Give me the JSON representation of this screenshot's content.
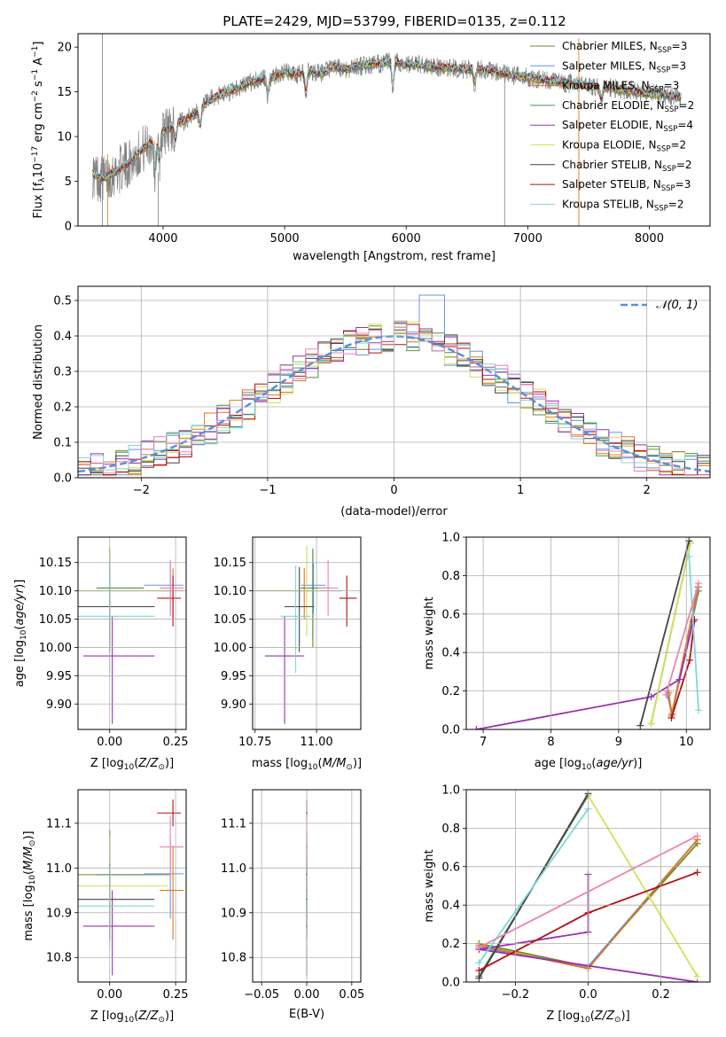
{
  "figure": {
    "title": "PLATE=2429, MJD=53799, FIBERID=0135, z=0.112"
  },
  "models": [
    {
      "label": "Chabrier MILES, N",
      "nssp": "=3",
      "color": "#6b8e23"
    },
    {
      "label": "Salpeter MILES, N",
      "nssp": "=3",
      "color": "#6495ed"
    },
    {
      "label": "Kroupa MILES, N",
      "nssp": "=3",
      "color": "#e0761a"
    },
    {
      "label": "Chabrier ELODIE, N",
      "nssp": "=2",
      "color": "#4d8c57"
    },
    {
      "label": "Salpeter ELODIE, N",
      "nssp": "=4",
      "color": "#9b30b0"
    },
    {
      "label": "Kroupa ELODIE, N",
      "nssp": "=2",
      "color": "#d4e157"
    },
    {
      "label": "Chabrier STELIB, N",
      "nssp": "=2",
      "color": "#444444"
    },
    {
      "label": "Salpeter STELIB, N",
      "nssp": "=3",
      "color": "#b01010"
    },
    {
      "label": "Kroupa STELIB, N",
      "nssp": "=2",
      "color": "#7fd8d8"
    }
  ],
  "extra_colors": {
    "pink": "#ee82b4",
    "lime": "#b5e655",
    "data": "#808080",
    "gaussian": "#5b8fd9"
  },
  "nssp_sub": "SSP",
  "chart_data": [
    {
      "id": "spectrum",
      "type": "line",
      "title": "PLATE=2429, MJD=53799, FIBERID=0135, z=0.112",
      "xlabel": "wavelength [Angstrom, rest frame]",
      "ylabel": "Flux [f",
      "ylabel_parts": [
        "Flux [f",
        "λ",
        "10",
        "−17",
        " erg cm",
        "−2",
        " s",
        "−1",
        " A",
        "−1",
        "]"
      ],
      "xlim": [
        3300,
        8500
      ],
      "ylim": [
        0,
        21.5
      ],
      "xticks": [
        4000,
        5000,
        6000,
        7000,
        8000
      ],
      "yticks": [
        0,
        5,
        10,
        15,
        20
      ],
      "grid": false,
      "legend": "top-right",
      "x": [
        3420,
        3500,
        3600,
        3700,
        3800,
        3900,
        4000,
        4100,
        4200,
        4300,
        4400,
        4500,
        4600,
        4700,
        4800,
        4900,
        5000,
        5100,
        5200,
        5300,
        5400,
        5500,
        5600,
        5700,
        5800,
        5900,
        6000,
        6100,
        6200,
        6300,
        6400,
        6500,
        6600,
        6700,
        6800,
        6900,
        7000,
        7100,
        7200,
        7300,
        7400,
        7500,
        7600,
        7700,
        7800,
        7900,
        8000,
        8100,
        8200,
        8260
      ],
      "y": [
        5.8,
        5.2,
        6.0,
        6.8,
        8.2,
        9.3,
        10.5,
        11.3,
        12.0,
        13.0,
        14.2,
        14.8,
        15.3,
        16.0,
        16.4,
        16.6,
        17.2,
        16.9,
        17.4,
        17.0,
        17.8,
        17.5,
        17.9,
        18.0,
        18.2,
        18.4,
        18.1,
        18.0,
        17.8,
        17.7,
        17.6,
        17.5,
        17.6,
        17.3,
        17.0,
        16.8,
        16.6,
        16.4,
        16.2,
        16.0,
        15.8,
        15.7,
        15.5,
        15.4,
        15.2,
        15.0,
        14.8,
        14.7,
        14.5,
        14.4
      ]
    },
    {
      "id": "residuals",
      "type": "bar",
      "xlabel": "(data-model)/error",
      "ylabel": "Normed distribution",
      "xlim": [
        -2.5,
        2.5
      ],
      "ylim": [
        0,
        0.54
      ],
      "xticks": [
        -2,
        -1,
        0,
        1,
        2
      ],
      "yticks": [
        0.0,
        0.1,
        0.2,
        0.3,
        0.4,
        0.5
      ],
      "grid": true,
      "legend": "top-right",
      "series": [
        {
          "name": "𝒩(0, 1)",
          "type": "line",
          "mean": 0,
          "sigma": 1
        }
      ]
    },
    {
      "id": "age_vs_Z",
      "type": "scatter",
      "xlabel": "Z [log",
      "ylabel": "age  [log",
      "xlim": [
        -0.12,
        0.29
      ],
      "ylim": [
        9.855,
        10.195
      ],
      "xticks": [
        0.0,
        0.25
      ],
      "yticks": [
        9.9,
        9.95,
        10.0,
        10.05,
        10.1,
        10.15
      ],
      "grid": true
    },
    {
      "id": "age_vs_mass",
      "type": "scatter",
      "xlabel": "mass [log",
      "ylabel": "",
      "xlim": [
        10.74,
        11.18
      ],
      "ylim": [
        9.855,
        10.195
      ],
      "xticks": [
        10.75,
        11.0
      ],
      "yticks": [
        9.9,
        9.95,
        10.0,
        10.05,
        10.1,
        10.15
      ],
      "grid": true
    },
    {
      "id": "weight_vs_age",
      "type": "line",
      "xlabel": "age  [log",
      "ylabel": "mass weight",
      "xlim": [
        6.75,
        10.35
      ],
      "ylim": [
        0,
        1.0
      ],
      "xticks": [
        7,
        8,
        9,
        10
      ],
      "yticks": [
        0.0,
        0.2,
        0.4,
        0.6,
        0.8,
        1.0
      ],
      "grid": true
    },
    {
      "id": "mass_vs_Z",
      "type": "scatter",
      "xlabel": "Z [log",
      "ylabel": "mass [log",
      "xlim": [
        -0.12,
        0.29
      ],
      "ylim": [
        10.745,
        11.175
      ],
      "xticks": [
        0.0,
        0.25
      ],
      "yticks": [
        10.8,
        10.9,
        11.0,
        11.1
      ],
      "grid": true
    },
    {
      "id": "mass_vs_ebv",
      "type": "scatter",
      "xlabel": "E(B-V)",
      "ylabel": "",
      "xlim": [
        -0.06,
        0.06
      ],
      "ylim": [
        10.745,
        11.175
      ],
      "xticks": [
        -0.05,
        0.0,
        0.05
      ],
      "yticks": [
        10.8,
        10.9,
        11.0,
        11.1
      ],
      "grid": true
    },
    {
      "id": "weight_vs_Z",
      "type": "line",
      "xlabel": "Z [log",
      "ylabel": "mass weight",
      "xlim": [
        -0.335,
        0.335
      ],
      "ylim": [
        0,
        1.0
      ],
      "xticks": [
        -0.2,
        0.0,
        0.2
      ],
      "yticks": [
        0.0,
        0.2,
        0.4,
        0.6,
        0.8,
        1.0
      ],
      "grid": true
    }
  ],
  "fits": [
    {
      "Z": 0.0,
      "Zlo": 0.12,
      "Zhi": 0.23,
      "age": 10.1,
      "ageLo": 0.1,
      "ageHi": 0.07,
      "mass": 10.985,
      "massLo": 0.12,
      "massHi": 0.1,
      "massL": 0.25,
      "massR": 0.12
    },
    {
      "Z": 0.23,
      "Zlo": 0.1,
      "Zhi": 0.05,
      "age": 10.11,
      "ageLo": 0.05,
      "ageHi": 0.04,
      "mass": 10.987,
      "massLo": 0.1,
      "massHi": 0.08,
      "massL": 0.05,
      "massR": 0.05
    },
    {
      "Z": 0.24,
      "Zlo": 0.05,
      "Zhi": 0.04,
      "age": 10.1,
      "ageLo": 0.05,
      "ageHi": 0.04,
      "mass": 10.95,
      "massLo": 0.11,
      "massHi": 0.1,
      "massL": 0.05,
      "massR": 0.04
    },
    {
      "Z": 0.0,
      "Zlo": 0.05,
      "Zhi": 0.13,
      "age": 10.105,
      "ageLo": 0.09,
      "ageHi": 0.07,
      "mass": 10.985,
      "massLo": 0.12,
      "massHi": 0.1,
      "massL": 0.05,
      "massR": 0.07
    },
    {
      "Z": 0.01,
      "Zlo": 0.11,
      "Zhi": 0.16,
      "age": 9.985,
      "ageLo": 0.12,
      "ageHi": 0.07,
      "mass": 10.87,
      "massLo": 0.11,
      "massHi": 0.08,
      "massL": 0.08,
      "massR": 0.08
    },
    {
      "Z": 0.0,
      "Zlo": 0.13,
      "Zhi": 0.22,
      "age": 10.1,
      "ageLo": 0.08,
      "ageHi": 0.08,
      "mass": 10.96,
      "massLo": 0.12,
      "massHi": 0.11,
      "massL": 0.06,
      "massR": 0.06
    },
    {
      "Z": 0.0,
      "Zlo": 0.13,
      "Zhi": 0.17,
      "age": 10.072,
      "ageLo": 0.08,
      "ageHi": 0.07,
      "mass": 10.93,
      "massLo": 0.09,
      "massHi": 0.08,
      "massL": 0.06,
      "massR": 0.06
    },
    {
      "Z": 0.24,
      "Zlo": 0.06,
      "Zhi": 0.03,
      "age": 10.087,
      "ageLo": 0.05,
      "ageHi": 0.04,
      "mass": 11.123,
      "massLo": 0.03,
      "massHi": 0.03,
      "massL": 0.03,
      "massR": 0.04
    },
    {
      "Z": 0.0,
      "Zlo": 0.13,
      "Zhi": 0.17,
      "age": 10.055,
      "ageLo": 0.1,
      "ageHi": 0.09,
      "mass": 10.915,
      "massLo": 0.09,
      "massHi": 0.09,
      "massL": 0.06,
      "massR": 0.06
    },
    {
      "Z": 0.23,
      "Zlo": 0.04,
      "Zhi": 0.05,
      "age": 10.105,
      "ageLo": 0.05,
      "ageHi": 0.05,
      "mass": 11.047,
      "massLo": 0.07,
      "massHi": 0.07,
      "massL": 0.04,
      "massR": 0.04
    }
  ],
  "weights": [
    {
      "age": [
        9.72,
        9.79,
        10.18
      ],
      "Z": [
        -0.3,
        0.0,
        0.3
      ],
      "w": [
        0.2,
        0.08,
        0.72
      ]
    },
    {
      "age": [
        9.72,
        9.79,
        10.18
      ],
      "Z": [
        -0.3,
        0.0,
        0.3
      ],
      "w": [
        0.18,
        0.08,
        0.74
      ]
    },
    {
      "age": [
        9.74,
        9.78,
        10.17
      ],
      "Z": [
        -0.3,
        0.0,
        0.3
      ],
      "w": [
        0.19,
        0.07,
        0.74
      ]
    },
    {
      "age": [
        9.48,
        10.06
      ],
      "Z": [
        -0.3,
        0.0
      ],
      "w": [
        0.03,
        0.97
      ]
    },
    {
      "age": [
        6.9,
        9.48,
        9.9,
        10.1
      ],
      "Z": [
        0.3,
        -0.3,
        0.0,
        0.0
      ],
      "w": [
        0.0,
        0.17,
        0.26,
        0.56
      ]
    },
    {
      "age": [
        9.48,
        10.06
      ],
      "Z": [
        0.3,
        0.0
      ],
      "w": [
        0.03,
        0.97
      ]
    },
    {
      "age": [
        9.32,
        10.04
      ],
      "Z": [
        -0.3,
        0.0
      ],
      "w": [
        0.02,
        0.98
      ]
    },
    {
      "age": [
        9.78,
        10.05,
        10.12
      ],
      "Z": [
        -0.3,
        0.0,
        0.3
      ],
      "w": [
        0.06,
        0.36,
        0.57
      ]
    },
    {
      "age": [
        10.04,
        10.18
      ],
      "Z": [
        0.0,
        -0.3
      ],
      "w": [
        0.9,
        0.1
      ]
    },
    {
      "age": [
        9.7,
        10.18
      ],
      "Z": [
        -0.3,
        0.3
      ],
      "w": [
        0.18,
        0.76
      ]
    }
  ]
}
